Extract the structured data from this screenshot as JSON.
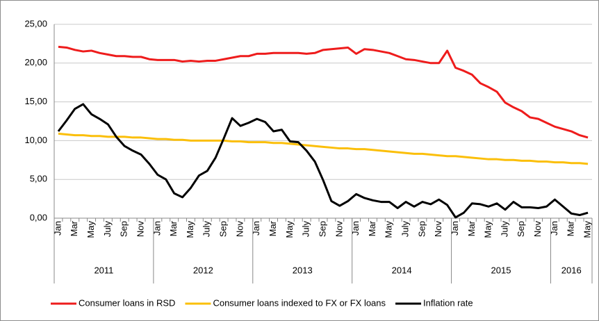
{
  "chart_data": {
    "type": "line",
    "categories": [
      "Jan",
      null,
      "Mar",
      null,
      "May",
      null,
      "July",
      null,
      "Sep",
      null,
      "Nov",
      null,
      "Jan",
      null,
      "Mar",
      null,
      "May",
      null,
      "July",
      null,
      "Sep",
      null,
      "Nov",
      null,
      "Jan",
      null,
      "Mar",
      null,
      "May",
      null,
      "July",
      null,
      "Sep",
      null,
      "Nov",
      null,
      "Jan",
      null,
      "Mar",
      null,
      "May",
      null,
      "July",
      null,
      "Sep",
      null,
      "Nov",
      null,
      "Jan",
      null,
      "Mar",
      null,
      "May",
      null,
      "July",
      null,
      "Sep",
      null,
      "Nov",
      null,
      "Jan",
      null,
      "Mar",
      null,
      "May"
    ],
    "years": [
      "2011",
      "2012",
      "2013",
      "2014",
      "2015",
      "2016"
    ],
    "series": [
      {
        "name": "Consumer loans in RSD",
        "color": "#ee1c1c",
        "values": [
          22.1,
          22.0,
          21.7,
          21.5,
          21.6,
          21.3,
          21.1,
          20.9,
          20.9,
          20.8,
          20.8,
          20.5,
          20.4,
          20.4,
          20.4,
          20.2,
          20.3,
          20.2,
          20.3,
          20.3,
          20.5,
          20.7,
          20.9,
          20.9,
          21.2,
          21.2,
          21.3,
          21.3,
          21.3,
          21.3,
          21.2,
          21.3,
          21.7,
          21.8,
          21.9,
          22.0,
          21.2,
          21.8,
          21.7,
          21.5,
          21.3,
          20.9,
          20.5,
          20.4,
          20.2,
          20.0,
          20.0,
          21.6,
          19.4,
          19.0,
          18.5,
          17.4,
          16.9,
          16.3,
          14.9,
          14.3,
          13.8,
          13.0,
          12.8,
          12.3,
          11.8,
          11.5,
          11.2,
          10.7,
          10.4
        ]
      },
      {
        "name": "Consumer loans indexed to FX or FX loans",
        "color": "#fbbf0a",
        "values": [
          10.9,
          10.8,
          10.7,
          10.7,
          10.6,
          10.6,
          10.5,
          10.5,
          10.5,
          10.4,
          10.4,
          10.3,
          10.2,
          10.2,
          10.1,
          10.1,
          10.0,
          10.0,
          10.0,
          10.0,
          10.0,
          9.9,
          9.9,
          9.8,
          9.8,
          9.8,
          9.7,
          9.7,
          9.6,
          9.5,
          9.4,
          9.3,
          9.2,
          9.1,
          9.0,
          9.0,
          8.9,
          8.9,
          8.8,
          8.7,
          8.6,
          8.5,
          8.4,
          8.3,
          8.3,
          8.2,
          8.1,
          8.0,
          8.0,
          7.9,
          7.8,
          7.7,
          7.6,
          7.6,
          7.5,
          7.5,
          7.4,
          7.4,
          7.3,
          7.3,
          7.2,
          7.2,
          7.1,
          7.1,
          7.0
        ]
      },
      {
        "name": "Inflation rate",
        "color": "#000000",
        "values": [
          11.2,
          12.6,
          14.1,
          14.7,
          13.4,
          12.8,
          12.1,
          10.5,
          9.3,
          8.7,
          8.2,
          7.0,
          5.6,
          5.0,
          3.2,
          2.7,
          3.9,
          5.5,
          6.1,
          7.8,
          10.3,
          12.9,
          11.9,
          12.3,
          12.8,
          12.4,
          11.2,
          11.4,
          9.9,
          9.8,
          8.7,
          7.3,
          4.9,
          2.2,
          1.6,
          2.2,
          3.1,
          2.6,
          2.3,
          2.1,
          2.1,
          1.3,
          2.1,
          1.5,
          2.1,
          1.8,
          2.4,
          1.7,
          0.1,
          0.7,
          1.9,
          1.8,
          1.5,
          1.9,
          1.1,
          2.1,
          1.4,
          1.4,
          1.3,
          1.5,
          2.4,
          1.5,
          0.6,
          0.4,
          0.7
        ]
      }
    ],
    "ylim": [
      0,
      25
    ],
    "yticks": [
      {
        "value": 0,
        "label": "0,00"
      },
      {
        "value": 5,
        "label": "5,00"
      },
      {
        "value": 10,
        "label": "10,00"
      },
      {
        "value": 15,
        "label": "15,00"
      },
      {
        "value": 20,
        "label": "20,00"
      },
      {
        "value": 25,
        "label": "25,00"
      }
    ],
    "grid": true,
    "legend": "bottom"
  }
}
